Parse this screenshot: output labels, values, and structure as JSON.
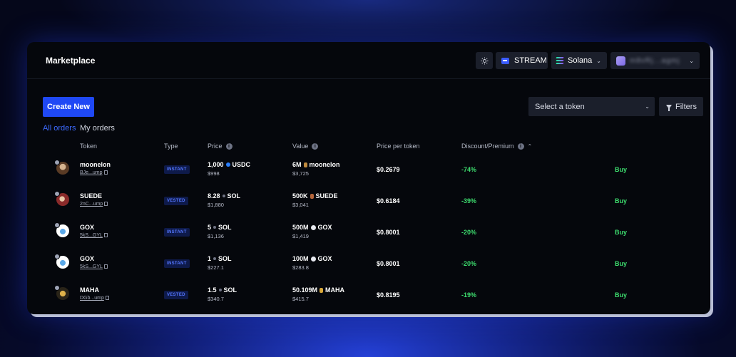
{
  "app": {
    "title": "Marketplace",
    "stream_label": "STREAM",
    "network_label": "Solana",
    "wallet_address": "m8vRj...agmj",
    "icons": {
      "theme": "sun-icon",
      "network_dropdown": "chevron-down-icon",
      "wallet_dropdown": "chevron-down-icon"
    }
  },
  "toolbar": {
    "create_label": "Create New",
    "select_token_placeholder": "Select a token",
    "filters_label": "Filters"
  },
  "tabs": [
    {
      "label": "All orders",
      "active": true
    },
    {
      "label": "My orders",
      "active": false
    }
  ],
  "columns": {
    "token": "Token",
    "type": "Type",
    "price": "Price",
    "value": "Value",
    "price_per_token": "Price per token",
    "discount": "Discount/Premium"
  },
  "colors": {
    "accent": "#1f48f5",
    "link_active": "#3d6bff",
    "positive": "#3ddc6e",
    "panel": "#05070c"
  },
  "orders": [
    {
      "token": "moonelon",
      "address": "BJe...ump",
      "type": "INSTANT",
      "price_amount": "1,000",
      "price_currency": "USDC",
      "price_usd": "$998",
      "value_amount": "6M",
      "value_token": "moonelon",
      "value_usd": "$3,725",
      "price_per_token": "$0.2679",
      "discount": "-74%",
      "action": "Buy"
    },
    {
      "token": "SUEDE",
      "address": "2nC...ump",
      "type": "VESTED",
      "price_amount": "8.28",
      "price_currency": "SOL",
      "price_usd": "$1,880",
      "value_amount": "500K",
      "value_token": "SUEDE",
      "value_usd": "$3,041",
      "price_per_token": "$0.6184",
      "discount": "-39%",
      "action": "Buy"
    },
    {
      "token": "GOX",
      "address": "5kS...GYL",
      "type": "INSTANT",
      "price_amount": "5",
      "price_currency": "SOL",
      "price_usd": "$1,136",
      "value_amount": "500M",
      "value_token": "GOX",
      "value_usd": "$1,419",
      "price_per_token": "$0.8001",
      "discount": "-20%",
      "action": "Buy"
    },
    {
      "token": "GOX",
      "address": "5kS...GYL",
      "type": "INSTANT",
      "price_amount": "1",
      "price_currency": "SOL",
      "price_usd": "$227.1",
      "value_amount": "100M",
      "value_token": "GOX",
      "value_usd": "$283.8",
      "price_per_token": "$0.8001",
      "discount": "-20%",
      "action": "Buy"
    },
    {
      "token": "MAHA",
      "address": "DGb...ump",
      "type": "VESTED",
      "price_amount": "1.5",
      "price_currency": "SOL",
      "price_usd": "$340.7",
      "value_amount": "50.109M",
      "value_token": "MAHA",
      "value_usd": "$415.7",
      "price_per_token": "$0.8195",
      "discount": "-19%",
      "action": "Buy"
    }
  ]
}
